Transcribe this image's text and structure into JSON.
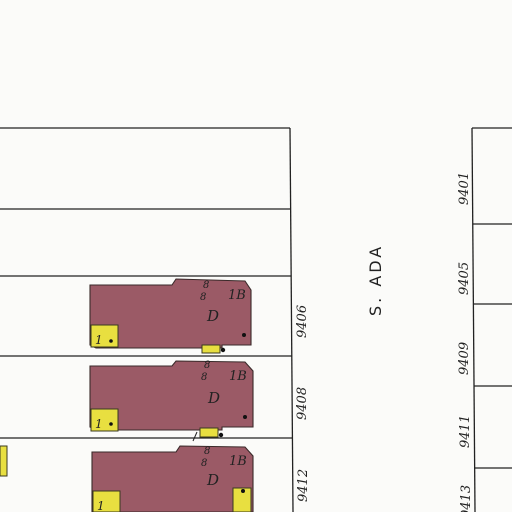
{
  "street": {
    "name": "S. ADA"
  },
  "west_lots": [
    {
      "number": "",
      "building": null
    },
    {
      "number": "",
      "building": null
    },
    {
      "number": "9406",
      "building": {
        "stories": "1B",
        "type": "D",
        "shed": "1"
      }
    },
    {
      "number": "9408",
      "building": {
        "stories": "1B",
        "type": "D",
        "shed": "1"
      }
    },
    {
      "number": "9412",
      "building": {
        "stories": "1B",
        "type": "D",
        "shed": "1"
      }
    }
  ],
  "east_lots": [
    {
      "number": "9401"
    },
    {
      "number": "9405"
    },
    {
      "number": "9409"
    },
    {
      "number": "9411"
    },
    {
      "number": "9413"
    }
  ],
  "colors": {
    "brick_building": "#9b5a66",
    "frame_shed": "#e8df40",
    "lot_line": "#222222"
  },
  "legend_meaning": {}
}
